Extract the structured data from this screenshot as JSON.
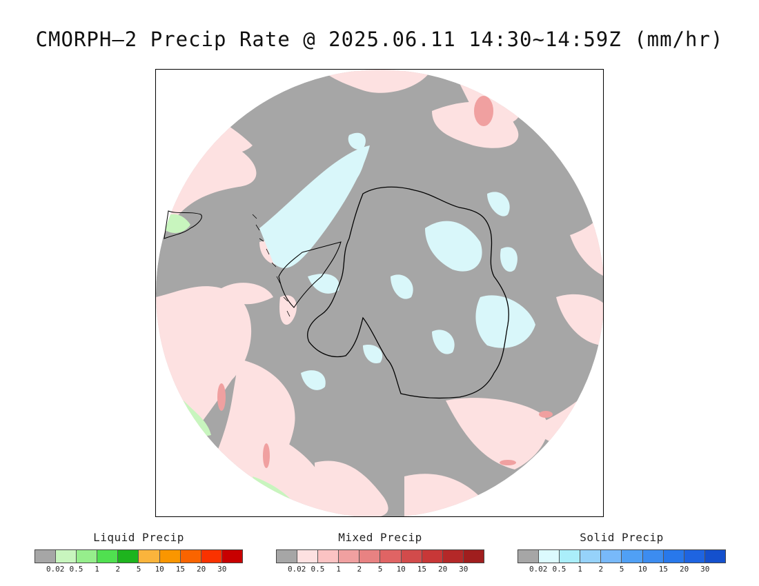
{
  "title": "CMORPH–2 Precip Rate @ 2025.06.11 14:30~14:59Z (mm/hr)",
  "map": {
    "projection": "south-polar-stereographic",
    "colors": {
      "no_precip": "#a6a6a6",
      "mixed_light": "#fde1e1",
      "solid_light": "#d9f7fa",
      "liquid_light": "#c8f5be",
      "coast": "#000000"
    }
  },
  "legends": [
    {
      "title": "Liquid Precip",
      "colors": [
        "#a6a6a6",
        "#c8f5be",
        "#96ee8c",
        "#50e050",
        "#1eb41e",
        "#fab43c",
        "#fa9600",
        "#fa6400",
        "#fa3200",
        "#c80000"
      ],
      "ticks": [
        "0.02",
        "0.5",
        "1",
        "2",
        "5",
        "10",
        "15",
        "20",
        "30"
      ]
    },
    {
      "title": "Mixed Precip",
      "colors": [
        "#a6a6a6",
        "#fde1e1",
        "#fbc3c3",
        "#f0a0a0",
        "#e88282",
        "#e06464",
        "#d24b4b",
        "#c83737",
        "#b42828",
        "#a01e1e"
      ],
      "ticks": [
        "0.02",
        "0.5",
        "1",
        "2",
        "5",
        "10",
        "15",
        "20",
        "30"
      ]
    },
    {
      "title": "Solid Precip",
      "colors": [
        "#a6a6a6",
        "#dcfafe",
        "#aaeefa",
        "#96d2fa",
        "#78b9fa",
        "#50a0f5",
        "#3c8cf0",
        "#2878eb",
        "#1e64e1",
        "#1450cd"
      ],
      "ticks": [
        "0.02",
        "0.5",
        "1",
        "2",
        "5",
        "10",
        "15",
        "20",
        "30"
      ]
    }
  ]
}
